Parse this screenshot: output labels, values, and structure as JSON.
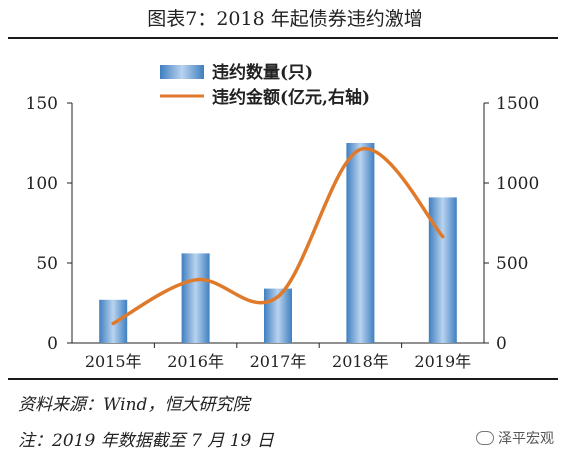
{
  "title": "图表7：2018 年起债券违约激增",
  "footer": {
    "source": "资料来源：Wind，恒大研究院",
    "note": "注：2019 年数据截至 7 月 19 日",
    "watermark": "泽平宏观"
  },
  "colors": {
    "bar": "#3f7fc0",
    "bar_light": "#b9d3ef",
    "line": "#e07a2b",
    "axis": "#222222"
  },
  "chart_data": {
    "type": "bar",
    "categories": [
      "2015年",
      "2016年",
      "2017年",
      "2018年",
      "2019年"
    ],
    "series": [
      {
        "name": "违约数量(只)",
        "type": "bar",
        "axis": "left",
        "values": [
          27,
          56,
          34,
          125,
          91
        ]
      },
      {
        "name": "违约金额(亿元,右轴)",
        "type": "line",
        "axis": "right",
        "values": [
          122,
          395,
          290,
          1210,
          665
        ]
      }
    ],
    "left_axis": {
      "ylim": [
        0,
        150
      ],
      "ticks": [
        "0",
        "50",
        "100",
        "150"
      ]
    },
    "right_axis": {
      "ylim": [
        0,
        1500
      ],
      "ticks": [
        "0",
        "500",
        "1000",
        "1500"
      ]
    },
    "grid": false,
    "legend": "top-center"
  }
}
